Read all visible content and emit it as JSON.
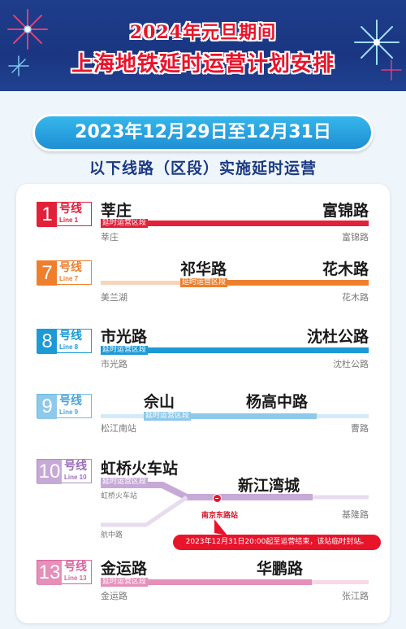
{
  "header": {
    "title_line1": "2024年元旦期间",
    "title_line2": "上海地铁延时运营计划安排"
  },
  "date_range": "2023年12月29日至12月31日",
  "subtitle": "以下线路（区段）实施延时运营",
  "extended_tag": "延时运营区段",
  "colors": {
    "line1": "#e3203a",
    "line7": "#ee7f2d",
    "line8": "#1c9ad6",
    "line9": "#8ec9eb",
    "line10": "#c7a9d8",
    "line13": "#e58fb9",
    "title": "#e8142a"
  },
  "lines": [
    {
      "id": "line1",
      "num": "1",
      "hx": "号线",
      "en": "Line 1",
      "ext_start": "莘庄",
      "ext_end": "富锦路",
      "term_start": "莘庄",
      "term_end": "富锦路"
    },
    {
      "id": "line7",
      "num": "7",
      "hx": "号线",
      "en": "Line 7",
      "ext_start": "祁华路",
      "ext_end": "花木路",
      "term_start": "美兰湖",
      "term_end": "花木路"
    },
    {
      "id": "line8",
      "num": "8",
      "hx": "号线",
      "en": "Line 8",
      "ext_start": "市光路",
      "ext_end": "沈杜公路",
      "term_start": "市光路",
      "term_end": "沈杜公路"
    },
    {
      "id": "line9",
      "num": "9",
      "hx": "号线",
      "en": "Line 9",
      "ext_start": "佘山",
      "ext_end": "杨高中路",
      "term_start": "松江南站",
      "term_end": "曹路"
    },
    {
      "id": "line10",
      "num": "10",
      "hx": "号线",
      "en": "Line 10",
      "ext_start": "虹桥火车站",
      "ext_end": "新江湾城",
      "term_start": "虹桥火车站",
      "term_end": "基隆路",
      "branch_term": "航中路"
    },
    {
      "id": "line13",
      "num": "13",
      "hx": "号线",
      "en": "Line 13",
      "ext_start": "金运路",
      "ext_end": "华鹏路",
      "term_start": "金运路",
      "term_end": "张江路"
    }
  ],
  "closure": {
    "station": "南京东路站",
    "notice": "2023年12月31日20:00起至运营结束，该站临时封站。"
  }
}
